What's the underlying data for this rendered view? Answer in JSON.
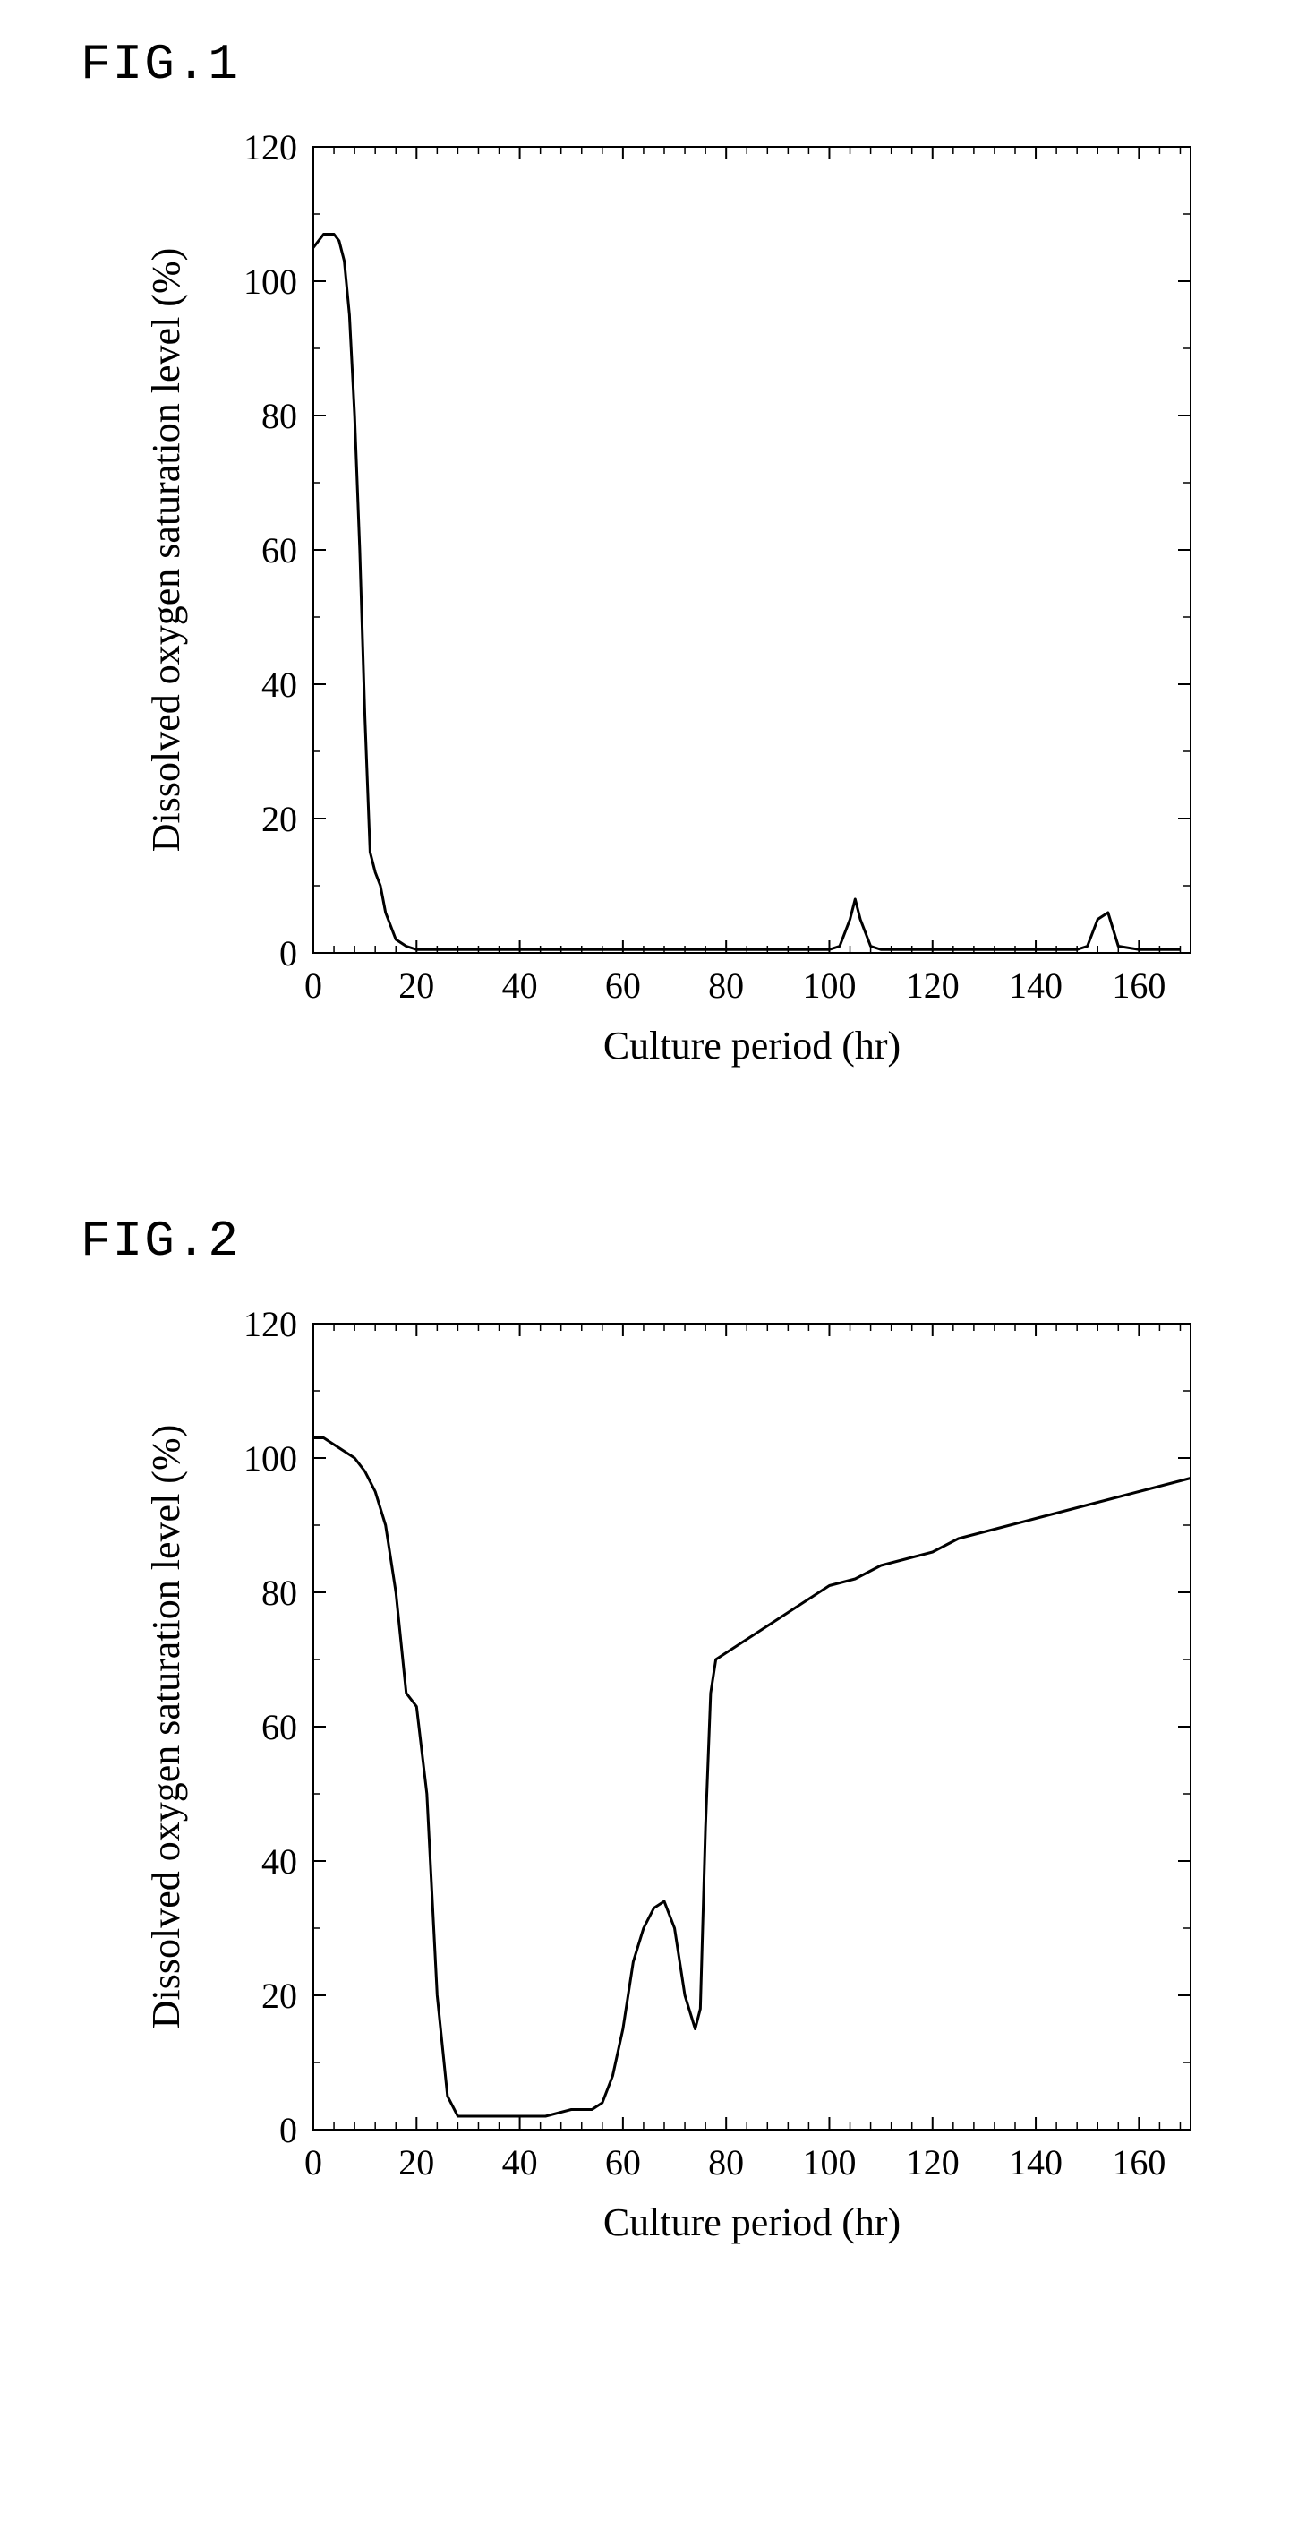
{
  "background_color": "#ffffff",
  "line_color": "#000000",
  "axis_color": "#000000",
  "text_color": "#000000",
  "font_family": "Times New Roman, serif",
  "label_font_family": "Courier New, monospace",
  "fig1": {
    "label": "FIG.1",
    "type": "line",
    "xlabel": "Culture period (hr)",
    "ylabel": "Dissolved oxygen saturation level (%)",
    "xlim": [
      0,
      170
    ],
    "ylim": [
      0,
      120
    ],
    "xtick_step": 20,
    "ytick_step": 20,
    "xminor_per_major": 5,
    "yminor_per_major": 2,
    "line_width": 3,
    "tick_fontsize": 40,
    "axis_title_fontsize": 44,
    "label_fontsize": 56,
    "series": [
      {
        "x": [
          0,
          1,
          2,
          3,
          4,
          5,
          6,
          7,
          8,
          9,
          10,
          11,
          12,
          13,
          14,
          15,
          16,
          18,
          20,
          25,
          30,
          40,
          50,
          60,
          70,
          80,
          90,
          100,
          102,
          104,
          105,
          106,
          108,
          110,
          120,
          130,
          140,
          148,
          150,
          152,
          154,
          156,
          160,
          168
        ],
        "y": [
          105,
          106,
          107,
          107,
          107,
          106,
          103,
          95,
          80,
          60,
          35,
          15,
          12,
          10,
          6,
          4,
          2,
          1,
          0.5,
          0.5,
          0.5,
          0.5,
          0.5,
          0.5,
          0.5,
          0.5,
          0.5,
          0.5,
          1,
          5,
          8,
          5,
          1,
          0.5,
          0.5,
          0.5,
          0.5,
          0.5,
          1,
          5,
          6,
          1,
          0.5,
          0.5
        ]
      }
    ]
  },
  "fig2": {
    "label": "FIG.2",
    "type": "line",
    "xlabel": "Culture period (hr)",
    "ylabel": "Dissolved oxygen saturation level (%)",
    "xlim": [
      0,
      170
    ],
    "ylim": [
      0,
      120
    ],
    "xtick_step": 20,
    "ytick_step": 20,
    "xminor_per_major": 5,
    "yminor_per_major": 2,
    "line_width": 3,
    "tick_fontsize": 40,
    "axis_title_fontsize": 44,
    "label_fontsize": 56,
    "series": [
      {
        "x": [
          0,
          2,
          4,
          6,
          8,
          10,
          12,
          14,
          16,
          18,
          20,
          22,
          24,
          26,
          28,
          30,
          35,
          40,
          45,
          50,
          52,
          54,
          56,
          58,
          60,
          62,
          64,
          66,
          68,
          70,
          72,
          74,
          75,
          76,
          77,
          78,
          80,
          82,
          84,
          86,
          88,
          90,
          92,
          94,
          96,
          98,
          100,
          105,
          110,
          115,
          120,
          125,
          130,
          135,
          140,
          145,
          150,
          155,
          160,
          165,
          170
        ],
        "y": [
          103,
          103,
          102,
          101,
          100,
          98,
          95,
          90,
          80,
          65,
          63,
          50,
          20,
          5,
          2,
          2,
          2,
          2,
          2,
          3,
          3,
          3,
          4,
          8,
          15,
          25,
          30,
          33,
          34,
          30,
          20,
          15,
          18,
          45,
          65,
          70,
          71,
          72,
          73,
          74,
          75,
          76,
          77,
          78,
          79,
          80,
          81,
          82,
          84,
          85,
          86,
          88,
          89,
          90,
          91,
          92,
          93,
          94,
          95,
          96,
          97
        ]
      }
    ]
  }
}
